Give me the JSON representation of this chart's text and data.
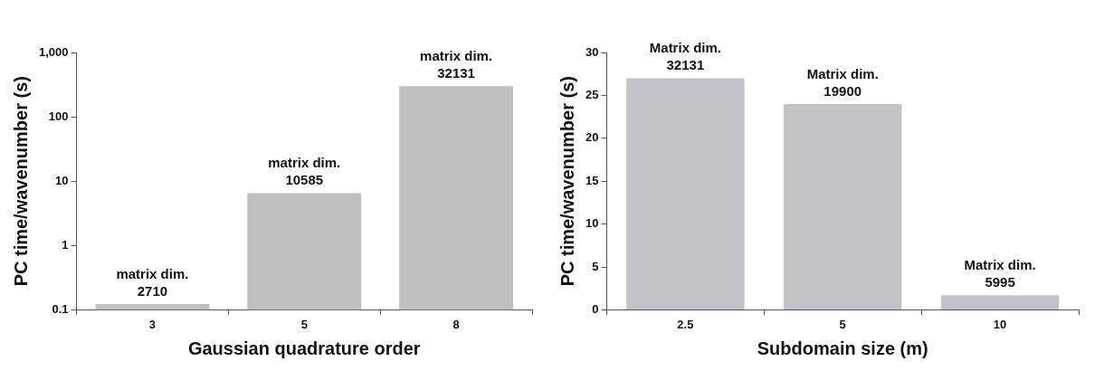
{
  "chart_data": [
    {
      "type": "bar",
      "xlabel": "Gaussian quadrature order",
      "ylabel": "PC time/wavenumber (s)",
      "categories": [
        "3",
        "5",
        "8"
      ],
      "values": [
        0.123,
        6.5,
        300
      ],
      "color": "#c0c0c0",
      "log": true,
      "ylim": [
        0.1,
        1000
      ],
      "yticks": [
        0.1,
        1,
        10,
        100,
        {
          "value": 1000,
          "label": "1,000"
        }
      ],
      "annotations": [
        {
          "text": "matrix dim.\n2710",
          "x": "3",
          "y": 0.123
        },
        {
          "text": "matrix dim.\n10585",
          "x": "5",
          "y": 6.5
        },
        {
          "text": "matrix dim.\n32131",
          "x": "8",
          "y": 300
        }
      ]
    },
    {
      "type": "bar",
      "xlabel": "Subdomain size (m)",
      "ylabel": "PC time/wavenumber (s)",
      "categories": [
        "2.5",
        "5",
        "10"
      ],
      "values": [
        27,
        24,
        1.7
      ],
      "color": "#c4c2c6",
      "ylim": [
        0,
        30
      ],
      "yticks": [
        0,
        5,
        10,
        15,
        20,
        25,
        30
      ],
      "annotations": [
        {
          "text": "Matrix dim.\n32131",
          "x": "2.5",
          "y": 27
        },
        {
          "text": "Matrix dim.\n19900",
          "x": "5",
          "y": 24
        },
        {
          "text": "Matrix dim.\n5995",
          "x": "10",
          "y": 1.7
        }
      ]
    }
  ]
}
